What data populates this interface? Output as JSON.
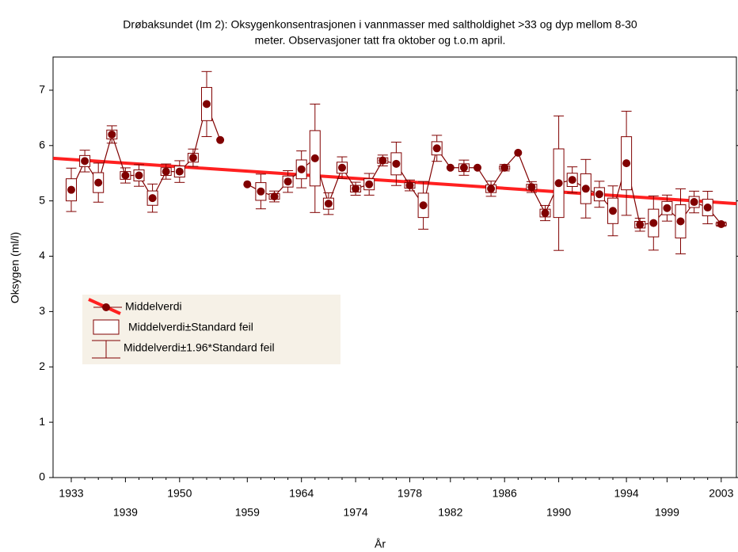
{
  "chart_data": {
    "type": "mean-se-box",
    "title": [
      "Drøbaksundet (Im 2): Oksygenkonsentrasjonen i vannmasser med saltholdighet >33 og dyp mellom 8-30",
      "meter. Observasjoner tatt fra oktober og t.o.m april."
    ],
    "x_label": "År",
    "y_label": "Oksygen (ml/l)",
    "categories": [
      "1933",
      null,
      null,
      null,
      "1939",
      null,
      null,
      null,
      "1950",
      null,
      null,
      null,
      null,
      "1959",
      null,
      null,
      null,
      "1964",
      null,
      null,
      null,
      "1974",
      null,
      null,
      null,
      "1978",
      null,
      null,
      "1982",
      null,
      null,
      null,
      "1986",
      null,
      null,
      null,
      "1990",
      null,
      null,
      null,
      null,
      "1994",
      null,
      null,
      "1999",
      null,
      null,
      null,
      "2003"
    ],
    "values": [
      5.2,
      5.72,
      5.33,
      6.2,
      5.46,
      5.46,
      5.05,
      5.53,
      5.53,
      5.78,
      6.75,
      6.1,
      null,
      5.3,
      5.17,
      5.08,
      5.35,
      5.57,
      5.77,
      4.95,
      5.6,
      5.22,
      5.3,
      5.73,
      5.67,
      5.28,
      4.92,
      5.95,
      5.6,
      5.6,
      5.6,
      5.22,
      5.6,
      5.87,
      5.25,
      4.78,
      5.32,
      5.38,
      5.22,
      5.12,
      4.82,
      5.68,
      4.57,
      4.6,
      4.87,
      4.63,
      4.98,
      4.88,
      4.58
    ],
    "se": [
      0.2,
      0.1,
      0.18,
      0.08,
      0.07,
      0.1,
      0.13,
      0.07,
      0.1,
      0.08,
      0.3,
      0,
      null,
      0,
      0.16,
      0.05,
      0.1,
      0.17,
      0.5,
      0.1,
      0.1,
      0.06,
      0.1,
      0.05,
      0.2,
      0.05,
      0.22,
      0.12,
      0,
      0.07,
      0,
      0.07,
      0.03,
      0,
      0.05,
      0.07,
      0.62,
      0.12,
      0.27,
      0.12,
      0.23,
      0.48,
      0.06,
      0.25,
      0.12,
      0.3,
      0.1,
      0.15,
      0.02
    ],
    "color": "#800000",
    "trend": {
      "values": [
        5.77,
        4.95
      ],
      "color": "#ff2020"
    },
    "legend": [
      "Middelverdi",
      "Middelverdi±Standard feil",
      "Middelverdi±1.96*Standard feil"
    ],
    "ylim": [
      0,
      7.6
    ],
    "yticks": [
      0,
      1,
      2,
      3,
      4,
      5,
      6,
      7
    ]
  }
}
